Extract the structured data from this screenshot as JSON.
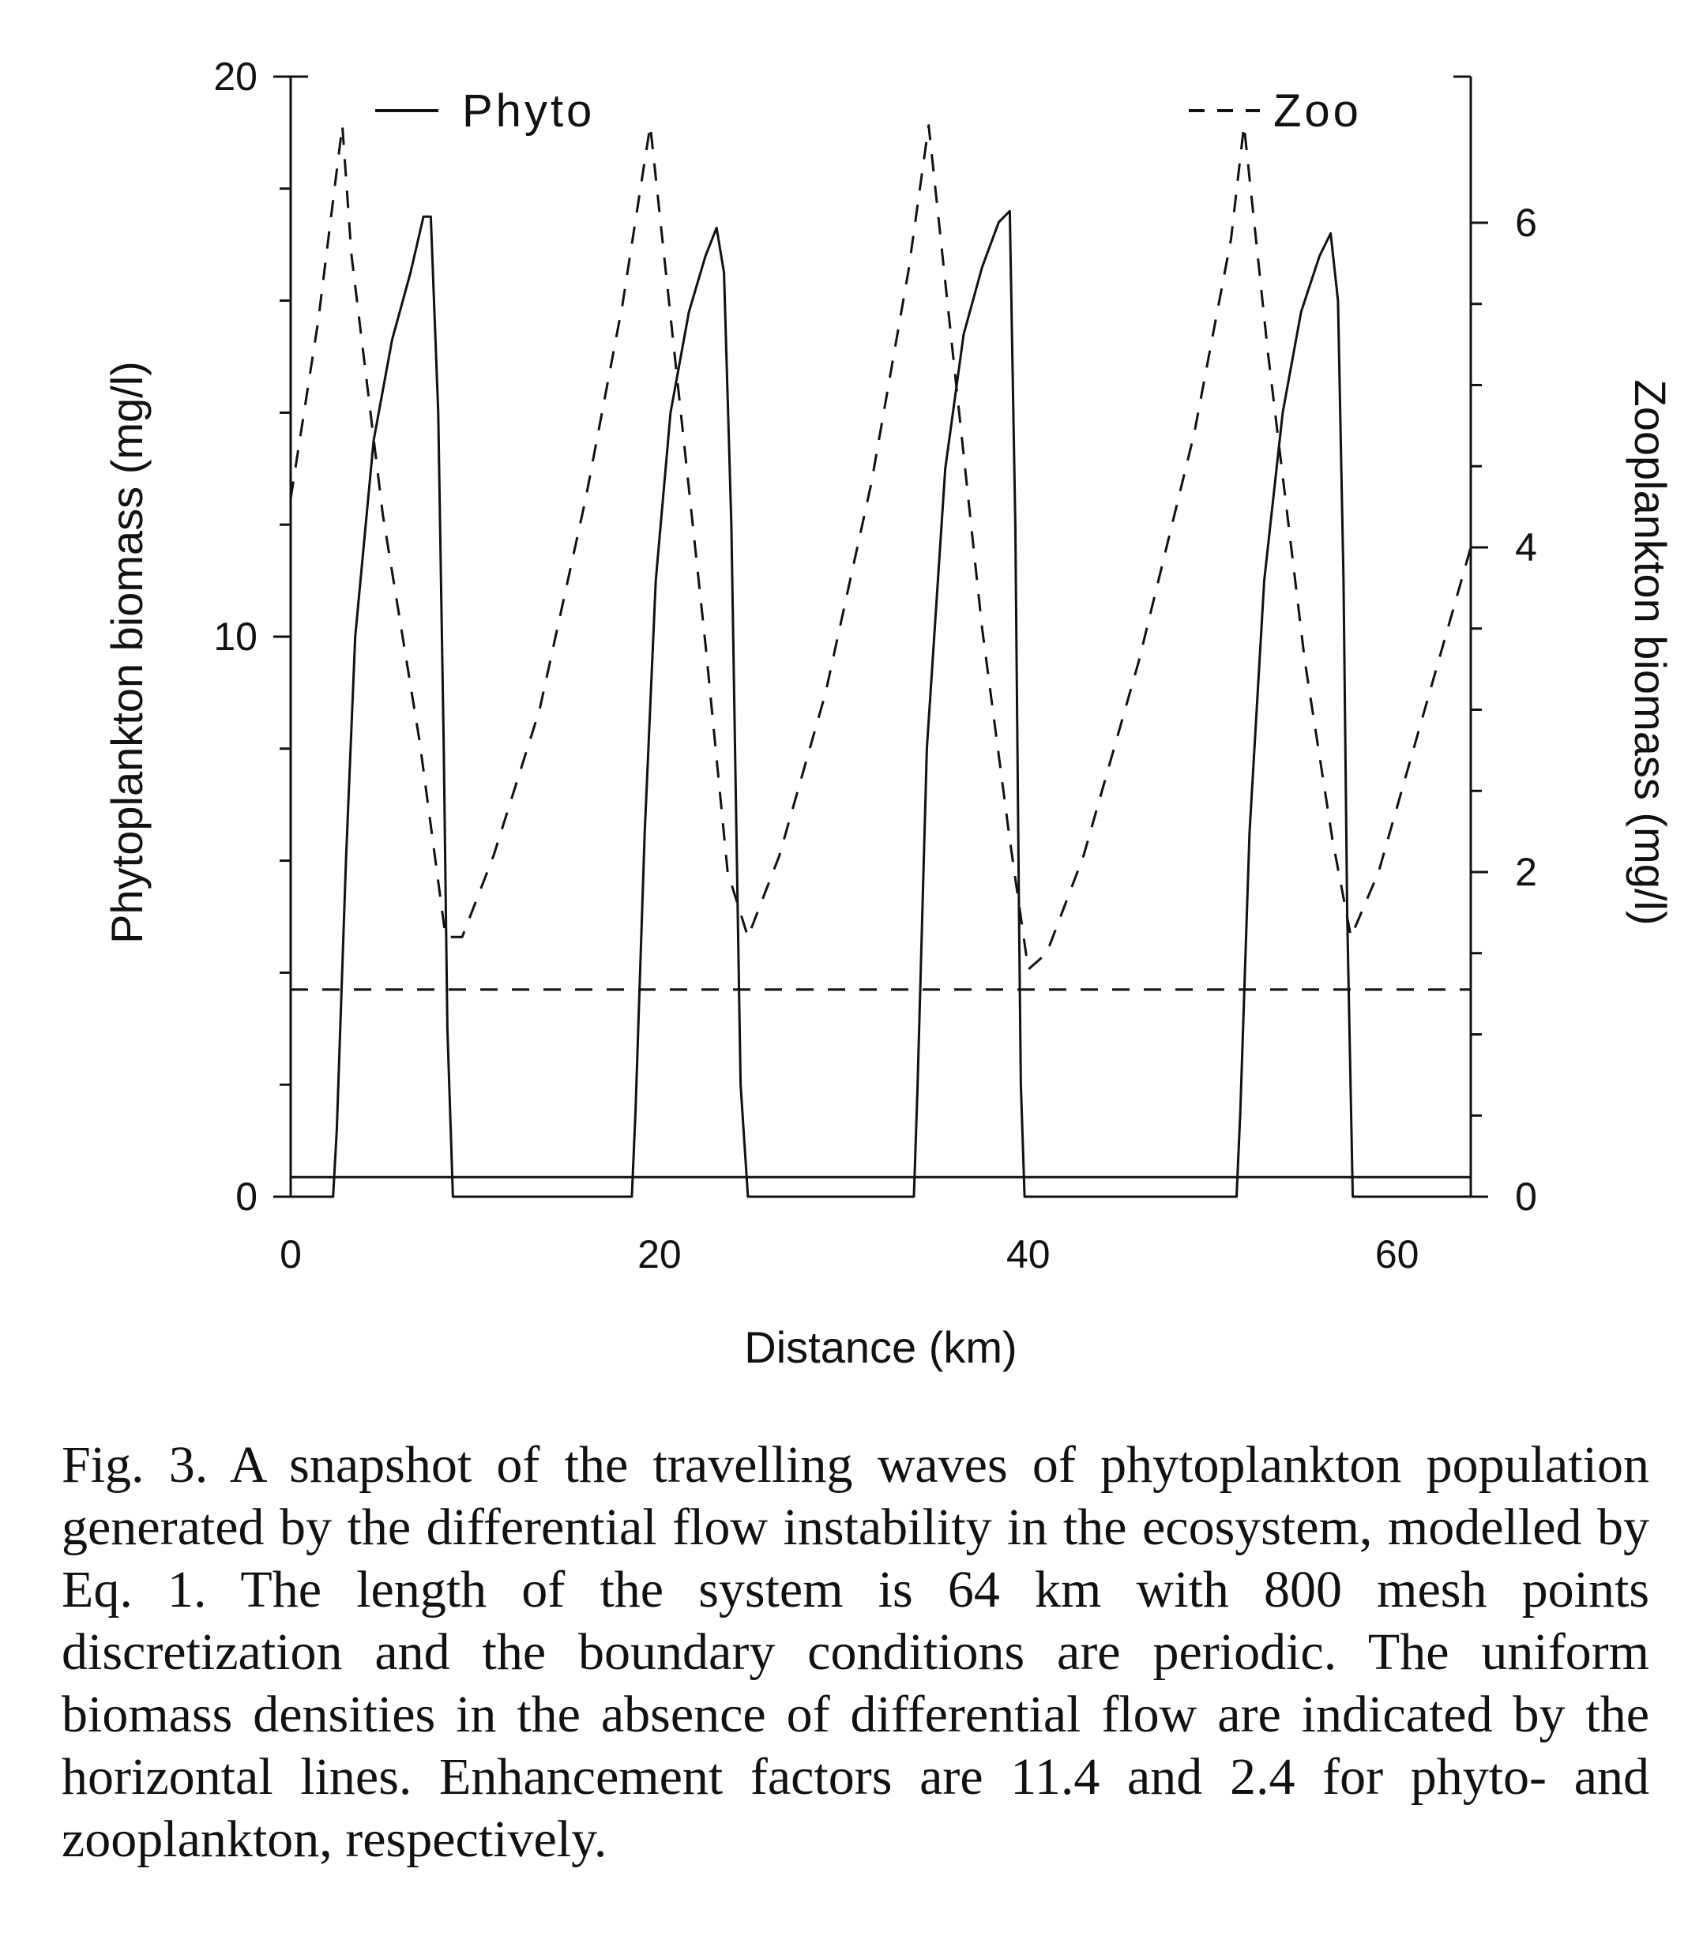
{
  "chart_data": {
    "type": "line",
    "legend": [
      "Phyto",
      "Zoo"
    ],
    "legend_placement": "top, split left/right inside plot",
    "xlabel": "Distance (km)",
    "ylabel_left": "Phytoplankton biomass (mg/l)",
    "ylabel_right": "Zooplankton biomass (mg/l)",
    "xlim": [
      0,
      64
    ],
    "ylim_left": [
      0,
      20
    ],
    "ylim_right": [
      0,
      6.9
    ],
    "x_ticks": [
      "0",
      "20",
      "40",
      "60"
    ],
    "y_ticks_left": [
      "0",
      "10",
      "20"
    ],
    "y_ticks_right": [
      "0",
      "2",
      "4",
      "6"
    ],
    "grid": false,
    "series": [
      {
        "name": "Phyto",
        "axis": "left",
        "style": "solid",
        "x": [
          0,
          2.3,
          2.5,
          3.0,
          3.5,
          4.5,
          5.5,
          6.5,
          7.2,
          7.6,
          8.0,
          8.3,
          8.5,
          8.8,
          18.5,
          18.7,
          19.2,
          19.8,
          20.6,
          21.6,
          22.5,
          23.1,
          23.5,
          23.9,
          24.2,
          24.4,
          24.8,
          33.8,
          34.0,
          34.5,
          35.5,
          36.5,
          37.5,
          38.4,
          39.0,
          39.3,
          39.5,
          39.6,
          39.8,
          51.3,
          51.5,
          52.0,
          52.8,
          53.8,
          54.8,
          55.8,
          56.4,
          56.8,
          57.1,
          57.3,
          57.6,
          64
        ],
        "y": [
          0,
          0,
          1.2,
          6.0,
          10.0,
          13.5,
          15.3,
          16.5,
          17.5,
          17.5,
          14.0,
          8.0,
          3.0,
          0,
          0,
          1.5,
          6.5,
          11.0,
          14.0,
          15.8,
          16.8,
          17.3,
          16.5,
          12.0,
          6.0,
          2.0,
          0,
          0,
          2.0,
          8.0,
          13.0,
          15.4,
          16.6,
          17.4,
          17.6,
          12.0,
          5.0,
          2.0,
          0,
          0,
          1.5,
          6.5,
          11.0,
          14.0,
          15.8,
          16.8,
          17.2,
          16.0,
          11.0,
          5.0,
          0,
          0
        ]
      },
      {
        "name": "Zoo",
        "axis": "right",
        "style": "dashed",
        "x": [
          0,
          1.5,
          2.8,
          3.3,
          5.0,
          7.0,
          8.4,
          9.3,
          11.0,
          13.5,
          16.0,
          18.0,
          19.5,
          21.0,
          22.5,
          23.7,
          24.8,
          26.5,
          29.0,
          31.5,
          33.5,
          34.6,
          36.0,
          37.5,
          39.0,
          40.0,
          41.0,
          43.0,
          46.0,
          49.0,
          51.0,
          51.7,
          53.0,
          55.0,
          56.5,
          57.5,
          59.0,
          61.0,
          63.0,
          64
        ],
        "y": [
          4.3,
          5.4,
          6.6,
          5.8,
          4.2,
          2.8,
          1.6,
          1.6,
          2.1,
          3.0,
          4.3,
          5.5,
          6.6,
          5.0,
          3.4,
          2.0,
          1.6,
          2.1,
          3.1,
          4.4,
          5.7,
          6.6,
          5.1,
          3.5,
          2.2,
          1.4,
          1.5,
          2.1,
          3.3,
          4.7,
          5.9,
          6.6,
          5.2,
          3.3,
          2.2,
          1.6,
          2.0,
          2.8,
          3.6,
          4.0
        ]
      },
      {
        "name": "",
        "axis": "left",
        "style": "solid",
        "x": [
          0,
          64
        ],
        "y": [
          0.35,
          0.35
        ]
      },
      {
        "name": "",
        "axis": "left",
        "style": "dashed",
        "x": [
          0,
          64
        ],
        "y": [
          3.7,
          3.7
        ]
      }
    ]
  },
  "caption": "Fig. 3. A snapshot of the travelling waves of phytoplankton population generated by the differential flow instability in the ecosystem, modelled by Eq. 1. The length of the system is 64 km with 800 mesh points discretization and the boundary conditions are periodic. The uniform biomass densities in the absence of differential flow are indicated by the horizontal lines. Enhancement factors are 11.4 and 2.4 for phyto- and zooplankton, respectively."
}
